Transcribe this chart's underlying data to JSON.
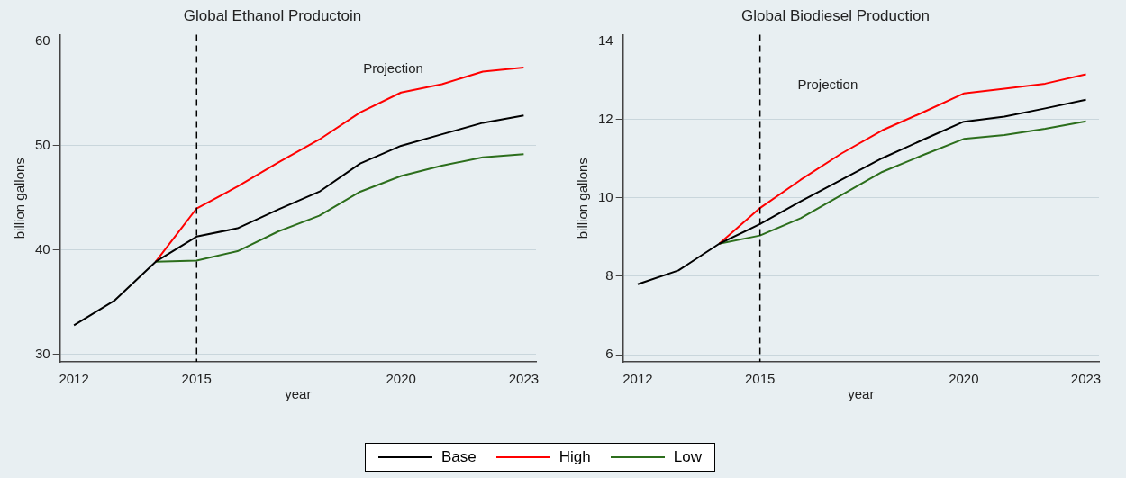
{
  "chart_data": [
    {
      "type": "line",
      "title": "Global Ethanol Productoin",
      "xlabel": "year",
      "ylabel": "billion gallons",
      "x": [
        2012,
        2013,
        2014,
        2015,
        2016,
        2017,
        2018,
        2019,
        2020,
        2021,
        2022,
        2023
      ],
      "series": [
        {
          "name": "Base",
          "color": "#000000",
          "values": [
            32.8,
            35.2,
            38.9,
            41.3,
            42.1,
            43.9,
            45.6,
            48.3,
            50.0,
            51.1,
            52.2,
            52.9
          ]
        },
        {
          "name": "High",
          "color": "#ff0000",
          "values": [
            null,
            null,
            38.9,
            44.0,
            46.1,
            48.4,
            50.6,
            53.2,
            55.1,
            55.9,
            57.1,
            57.5
          ]
        },
        {
          "name": "Low",
          "color": "#2c6e1c",
          "values": [
            null,
            null,
            38.9,
            39.0,
            39.9,
            41.8,
            43.3,
            45.6,
            47.1,
            48.1,
            48.9,
            49.2
          ]
        }
      ],
      "xlim": [
        2011.66,
        2023.3
      ],
      "xticks": [
        2012,
        2015,
        2020,
        2023
      ],
      "ylim": [
        29.3,
        60.65
      ],
      "yticks": [
        30,
        40,
        50,
        60
      ],
      "ref_lines": [
        {
          "axis": "x",
          "value": 2015,
          "color": "#000000",
          "line_style": "dashed"
        }
      ],
      "annotations": [
        "Projection"
      ],
      "grid": "y",
      "legend": "bottom",
      "marker": "none",
      "line_style": "solid"
    },
    {
      "type": "line",
      "title": "Global Biodiesel Production",
      "xlabel": "year",
      "ylabel": "billion gallons",
      "x": [
        2012,
        2013,
        2014,
        2015,
        2016,
        2017,
        2018,
        2019,
        2020,
        2021,
        2022,
        2023
      ],
      "series": [
        {
          "name": "Base",
          "color": "#000000",
          "values": [
            7.8,
            8.15,
            8.83,
            9.33,
            9.91,
            10.46,
            11.01,
            11.48,
            11.94,
            12.07,
            12.28,
            12.5
          ]
        },
        {
          "name": "High",
          "color": "#ff0000",
          "values": [
            null,
            null,
            8.83,
            9.74,
            10.46,
            11.13,
            11.72,
            12.18,
            12.66,
            12.78,
            12.91,
            13.15
          ]
        },
        {
          "name": "Low",
          "color": "#2c6e1c",
          "values": [
            null,
            null,
            8.83,
            9.04,
            9.48,
            10.07,
            10.66,
            11.09,
            11.5,
            11.6,
            11.76,
            11.95
          ]
        }
      ],
      "xlim": [
        2011.64,
        2023.32
      ],
      "xticks": [
        2012,
        2015,
        2020,
        2023
      ],
      "ylim": [
        5.82,
        14.16
      ],
      "yticks": [
        6,
        8,
        10,
        12,
        14
      ],
      "ref_lines": [
        {
          "axis": "x",
          "value": 2015,
          "color": "#000000",
          "line_style": "dashed"
        }
      ],
      "annotations": [
        "Projection"
      ],
      "grid": "y",
      "legend": "bottom",
      "marker": "none",
      "line_style": "solid"
    }
  ]
}
